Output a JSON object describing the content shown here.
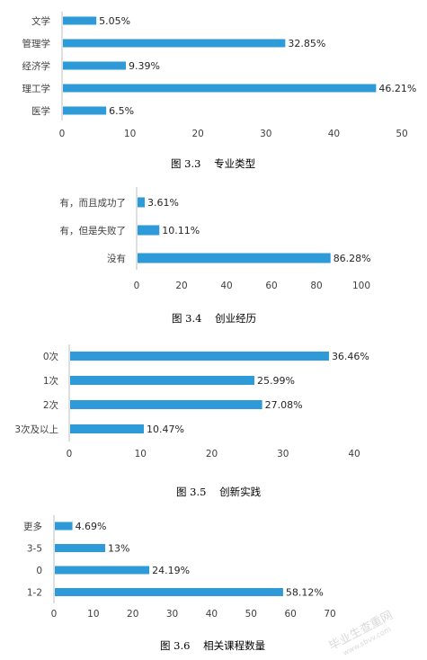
{
  "chart_data": [
    {
      "type": "bar",
      "orientation": "horizontal",
      "caption": "图 3.3    专业类型",
      "categories": [
        "文学",
        "管理学",
        "经济学",
        "理工学",
        "医学"
      ],
      "values": [
        5.05,
        32.85,
        9.39,
        46.21,
        6.5
      ],
      "value_labels": [
        "5.05%",
        "32.85%",
        "9.39%",
        "46.21%",
        "6.5%"
      ],
      "xlim": [
        0,
        50
      ],
      "xticks": [
        "0",
        "10",
        "20",
        "30",
        "40",
        "50"
      ],
      "grid": false
    },
    {
      "type": "bar",
      "orientation": "horizontal",
      "caption": "图 3.4    创业经历",
      "categories": [
        "有，而且成功了",
        "有，但是失败了",
        "没有"
      ],
      "values": [
        3.61,
        10.11,
        86.28
      ],
      "value_labels": [
        "3.61%",
        "10.11%",
        "86.28%"
      ],
      "xlim": [
        0,
        100
      ],
      "xticks": [
        "0",
        "20",
        "40",
        "60",
        "80",
        "100"
      ],
      "grid": false
    },
    {
      "type": "bar",
      "orientation": "horizontal",
      "caption": "图 3.5    创新实践",
      "categories": [
        "0次",
        "1次",
        "2次",
        "3次及以上"
      ],
      "values": [
        36.46,
        25.99,
        27.08,
        10.47
      ],
      "value_labels": [
        "36.46%",
        "25.99%",
        "27.08%",
        "10.47%"
      ],
      "xlim": [
        0,
        40
      ],
      "xticks": [
        "0",
        "10",
        "20",
        "30",
        "40"
      ],
      "grid": false
    },
    {
      "type": "bar",
      "orientation": "horizontal",
      "caption": "图 3.6    相关课程数量",
      "categories": [
        "更多",
        "3-5",
        "0",
        "1-2"
      ],
      "values": [
        4.69,
        13,
        24.19,
        58.12
      ],
      "value_labels": [
        "4.69%",
        "13%",
        "24.19%",
        "58.12%"
      ],
      "xlim": [
        0,
        70
      ],
      "xticks": [
        "0",
        "10",
        "20",
        "30",
        "40",
        "50",
        "60",
        "70"
      ],
      "grid": false
    }
  ],
  "watermark": {
    "text": "毕业生查重网",
    "subtext": "www.sbvv.com",
    "color": "#d9d9d9"
  },
  "colors": {
    "bar": "#2e9ad7",
    "axis": "#bfbfbf",
    "text": "#404040"
  }
}
